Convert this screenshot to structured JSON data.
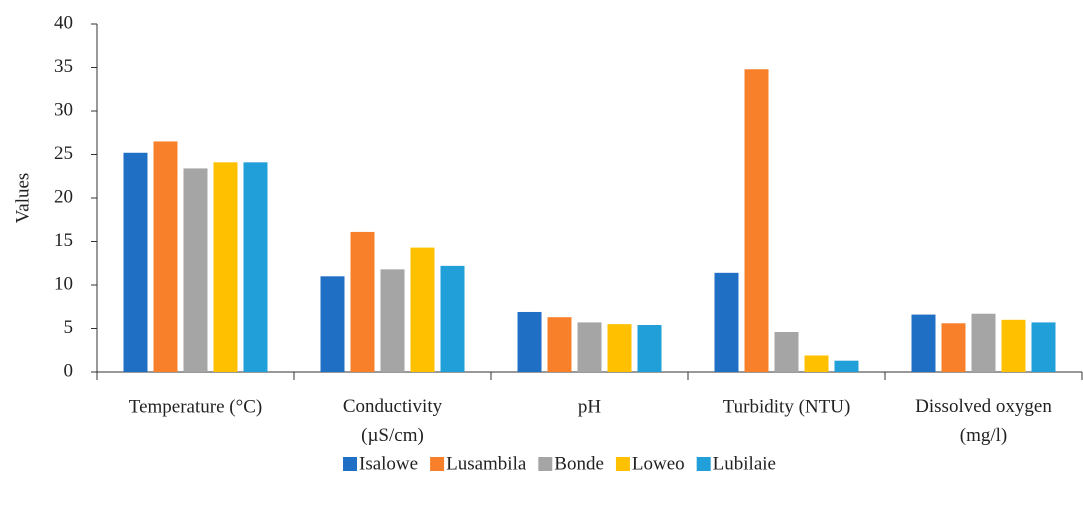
{
  "chart_data": {
    "type": "bar",
    "y_label": "Values",
    "categories": [
      "Temperature (°C)",
      "Conductivity\n(µS/cm)",
      "pH",
      "Turbidity (NTU)",
      "Dissolved oxygen\n(mg/l)"
    ],
    "series": [
      {
        "name": "Isalowe",
        "color": "#1f6fc5",
        "values": [
          25.2,
          11.0,
          6.9,
          11.4,
          6.6
        ]
      },
      {
        "name": "Lusambila",
        "color": "#f8802b",
        "values": [
          26.5,
          16.1,
          6.3,
          34.8,
          5.6
        ]
      },
      {
        "name": "Bonde",
        "color": "#a5a5a5",
        "values": [
          23.4,
          11.8,
          5.7,
          4.6,
          6.7
        ]
      },
      {
        "name": "Loweo",
        "color": "#ffc000",
        "values": [
          24.1,
          14.3,
          5.5,
          1.9,
          6.0
        ]
      },
      {
        "name": "Lubilaie",
        "color": "#219fd9",
        "values": [
          24.1,
          12.2,
          5.4,
          1.3,
          5.7
        ]
      }
    ],
    "ylim": [
      0,
      40
    ],
    "yticks": [
      0,
      5,
      10,
      15,
      20,
      25,
      30,
      35,
      40
    ],
    "grid": false,
    "legend": "bottom"
  }
}
